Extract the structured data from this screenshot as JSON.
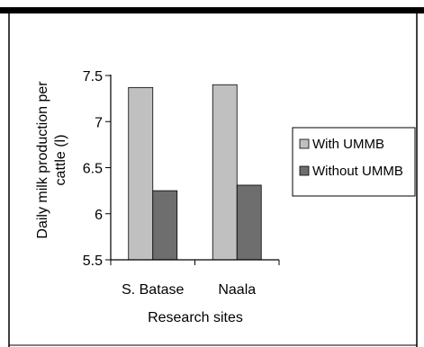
{
  "chart_data": {
    "type": "bar",
    "title": "",
    "categories": [
      "S. Batase",
      "Naala"
    ],
    "series": [
      {
        "name": "With UMMB",
        "values": [
          7.37,
          7.4
        ],
        "color": "#c0c0c0"
      },
      {
        "name": "Without UMMB",
        "values": [
          6.25,
          6.31
        ],
        "color": "#6e6e6e"
      }
    ],
    "xlabel": "Research sites",
    "ylabel_line1": "Daily milk production per",
    "ylabel_line2": "cattle (l)",
    "ylim": [
      5.5,
      7.5
    ],
    "yticks": [
      "5.5",
      "6",
      "6.5",
      "7",
      "7.5"
    ],
    "grid": false,
    "legend_position": "right"
  }
}
